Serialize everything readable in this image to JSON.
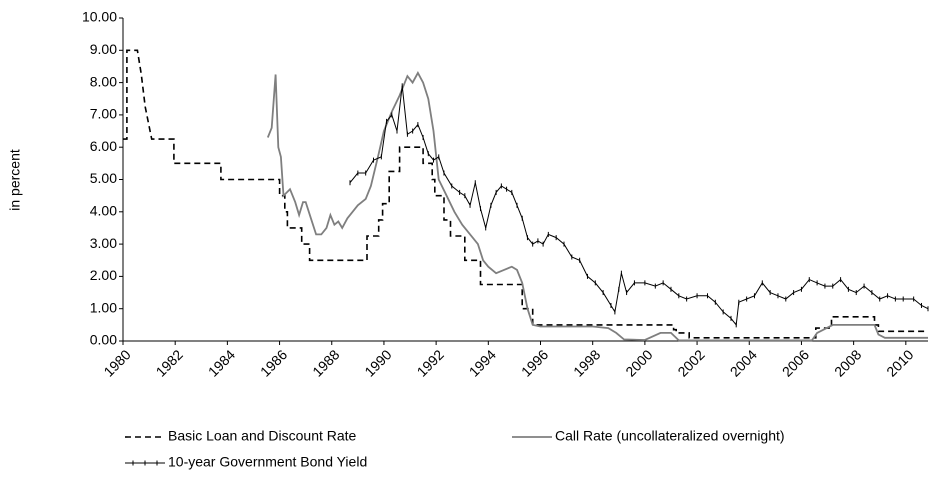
{
  "chart_data": {
    "type": "line",
    "y_label": "in percent",
    "xlim": [
      1980,
      2010.85
    ],
    "xticks": [
      1980,
      1982,
      1984,
      1986,
      1988,
      1990,
      1992,
      1994,
      1996,
      1998,
      2000,
      2002,
      2004,
      2006,
      2008,
      2010
    ],
    "ylim": [
      0,
      10
    ],
    "yticks": [
      {
        "value": 0,
        "label": "0.00"
      },
      {
        "value": 1,
        "label": "1.00"
      },
      {
        "value": 2,
        "label": "2.00"
      },
      {
        "value": 3,
        "label": "3.00"
      },
      {
        "value": 4,
        "label": "4.00"
      },
      {
        "value": 5,
        "label": "5.00"
      },
      {
        "value": 6,
        "label": "6.00"
      },
      {
        "value": 7,
        "label": "7.00"
      },
      {
        "value": 8,
        "label": "8.00"
      },
      {
        "value": 9,
        "label": "9.00"
      },
      {
        "value": 10,
        "label": "10.00"
      }
    ],
    "grid": false,
    "legend": "bottom",
    "series": [
      {
        "name": "Basic Loan and Discount Rate",
        "color": "#000000",
        "dash": true,
        "x": [
          1980.0,
          1980.15,
          1980.15,
          1980.55,
          1980.7,
          1980.85,
          1981.1,
          1981.95,
          1981.95,
          1983.75,
          1983.75,
          1986.0,
          1986.0,
          1986.2,
          1986.2,
          1986.3,
          1986.3,
          1986.85,
          1986.85,
          1987.15,
          1987.15,
          1989.35,
          1989.35,
          1989.8,
          1989.8,
          1989.95,
          1989.95,
          1990.2,
          1990.2,
          1990.6,
          1990.6,
          1991.5,
          1991.5,
          1991.85,
          1991.85,
          1991.95,
          1991.95,
          1992.3,
          1992.3,
          1992.55,
          1992.55,
          1993.1,
          1993.1,
          1993.7,
          1993.7,
          1995.3,
          1995.3,
          1995.7,
          1995.7,
          2001.1,
          2001.1,
          2001.2,
          2001.2,
          2001.7,
          2001.7,
          2006.55,
          2006.55,
          2007.15,
          2007.15,
          2008.8,
          2008.8,
          2008.95,
          2008.95,
          2010.85
        ],
        "values": [
          6.25,
          6.25,
          9.0,
          9.0,
          8.25,
          7.25,
          6.25,
          6.25,
          5.5,
          5.5,
          5.0,
          5.0,
          4.5,
          4.5,
          4.0,
          4.0,
          3.5,
          3.5,
          3.0,
          3.0,
          2.5,
          2.5,
          3.25,
          3.25,
          3.75,
          3.75,
          4.25,
          4.25,
          5.25,
          5.25,
          6.0,
          6.0,
          5.5,
          5.5,
          5.0,
          5.0,
          4.5,
          4.5,
          3.75,
          3.75,
          3.25,
          3.25,
          2.5,
          2.5,
          1.75,
          1.75,
          1.0,
          1.0,
          0.5,
          0.5,
          0.35,
          0.35,
          0.25,
          0.25,
          0.1,
          0.1,
          0.4,
          0.4,
          0.75,
          0.75,
          0.5,
          0.5,
          0.3,
          0.3
        ]
      },
      {
        "name": "Call Rate (uncollateralized overnight)",
        "color": "#7f7f7f",
        "x": [
          1985.55,
          1985.7,
          1985.85,
          1985.95,
          1986.05,
          1986.15,
          1986.4,
          1986.6,
          1986.75,
          1986.9,
          1987.0,
          1987.2,
          1987.4,
          1987.6,
          1987.8,
          1987.95,
          1988.1,
          1988.25,
          1988.4,
          1988.6,
          1988.8,
          1989.0,
          1989.3,
          1989.5,
          1989.8,
          1990.0,
          1990.3,
          1990.6,
          1990.9,
          1991.1,
          1991.3,
          1991.5,
          1991.7,
          1991.9,
          1992.1,
          1992.4,
          1992.7,
          1993.0,
          1993.3,
          1993.6,
          1993.8,
          1994.0,
          1994.3,
          1994.6,
          1994.9,
          1995.1,
          1995.3,
          1995.5,
          1995.7,
          1996.0,
          1997.0,
          1998.0,
          1998.6,
          1998.9,
          1999.2,
          2000.0,
          2000.6,
          2001.0,
          2001.3,
          2006.4,
          2006.6,
          2007.2,
          2008.0,
          2008.8,
          2008.95,
          2009.2,
          2010.85
        ],
        "values": [
          6.3,
          6.6,
          8.25,
          6.0,
          5.7,
          4.5,
          4.7,
          4.3,
          3.9,
          4.3,
          4.3,
          3.8,
          3.3,
          3.3,
          3.5,
          3.9,
          3.6,
          3.7,
          3.5,
          3.8,
          4.0,
          4.2,
          4.4,
          4.8,
          5.8,
          6.5,
          7.1,
          7.6,
          8.2,
          8.0,
          8.3,
          8.0,
          7.5,
          6.5,
          5.0,
          4.5,
          4.0,
          3.6,
          3.3,
          3.0,
          2.5,
          2.3,
          2.1,
          2.2,
          2.3,
          2.2,
          1.8,
          1.0,
          0.5,
          0.45,
          0.45,
          0.45,
          0.4,
          0.25,
          0.05,
          0.03,
          0.25,
          0.25,
          0.02,
          0.02,
          0.25,
          0.5,
          0.5,
          0.5,
          0.2,
          0.1,
          0.1
        ]
      },
      {
        "name": "10-year Government Bond Yield",
        "color": "#000000",
        "marker": "+",
        "x": [
          1988.7,
          1989.0,
          1989.3,
          1989.6,
          1989.9,
          1990.1,
          1990.3,
          1990.5,
          1990.7,
          1990.9,
          1991.1,
          1991.3,
          1991.5,
          1991.7,
          1991.9,
          1992.1,
          1992.3,
          1992.6,
          1992.9,
          1993.1,
          1993.3,
          1993.5,
          1993.7,
          1993.9,
          1994.1,
          1994.3,
          1994.5,
          1994.7,
          1994.9,
          1995.1,
          1995.3,
          1995.5,
          1995.7,
          1995.9,
          1996.1,
          1996.3,
          1996.6,
          1996.9,
          1997.2,
          1997.5,
          1997.8,
          1998.1,
          1998.4,
          1998.7,
          1998.85,
          1999.0,
          1999.1,
          1999.3,
          1999.6,
          2000.0,
          2000.4,
          2000.7,
          2001.0,
          2001.3,
          2001.6,
          2002.0,
          2002.4,
          2002.7,
          2003.0,
          2003.3,
          2003.5,
          2003.6,
          2003.9,
          2004.2,
          2004.5,
          2004.8,
          2005.1,
          2005.4,
          2005.7,
          2006.0,
          2006.3,
          2006.6,
          2006.9,
          2007.2,
          2007.5,
          2007.8,
          2008.1,
          2008.4,
          2008.7,
          2009.0,
          2009.3,
          2009.6,
          2009.9,
          2010.3,
          2010.6,
          2010.85
        ],
        "values": [
          4.9,
          5.2,
          5.2,
          5.6,
          5.7,
          6.8,
          7.0,
          6.5,
          7.9,
          6.4,
          6.5,
          6.7,
          6.3,
          5.8,
          5.6,
          5.7,
          5.2,
          4.8,
          4.6,
          4.5,
          4.2,
          4.9,
          4.1,
          3.5,
          4.2,
          4.6,
          4.8,
          4.7,
          4.6,
          4.2,
          3.8,
          3.2,
          3.0,
          3.1,
          3.0,
          3.3,
          3.2,
          3.0,
          2.6,
          2.5,
          2.0,
          1.8,
          1.5,
          1.1,
          0.9,
          1.6,
          2.1,
          1.5,
          1.8,
          1.8,
          1.7,
          1.8,
          1.6,
          1.4,
          1.3,
          1.4,
          1.4,
          1.2,
          0.9,
          0.7,
          0.5,
          1.2,
          1.3,
          1.4,
          1.8,
          1.5,
          1.4,
          1.3,
          1.5,
          1.6,
          1.9,
          1.8,
          1.7,
          1.7,
          1.9,
          1.6,
          1.5,
          1.7,
          1.5,
          1.3,
          1.4,
          1.3,
          1.3,
          1.3,
          1.1,
          1.0
        ]
      }
    ]
  }
}
